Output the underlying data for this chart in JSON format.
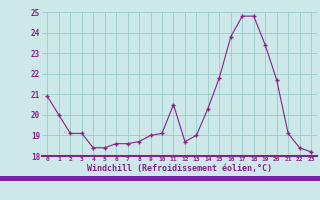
{
  "x": [
    0,
    1,
    2,
    3,
    4,
    5,
    6,
    7,
    8,
    9,
    10,
    11,
    12,
    13,
    14,
    15,
    16,
    17,
    18,
    19,
    20,
    21,
    22,
    23
  ],
  "y": [
    20.9,
    20.0,
    19.1,
    19.1,
    18.4,
    18.4,
    18.6,
    18.6,
    18.7,
    19.0,
    19.1,
    20.5,
    18.7,
    19.0,
    20.3,
    21.8,
    23.8,
    24.8,
    24.8,
    23.4,
    21.7,
    19.1,
    18.4,
    18.2
  ],
  "line_color": "#882288",
  "marker": "+",
  "bg_color": "#CCE8E8",
  "plot_bg_color": "#CCE8E8",
  "grid_color": "#99CCCC",
  "xlabel": "Windchill (Refroidissement éolien,°C)",
  "xlabel_color": "#882288",
  "tick_color": "#882288",
  "axis_line_color": "#882288",
  "ylim": [
    18,
    25
  ],
  "yticks": [
    18,
    19,
    20,
    21,
    22,
    23,
    24,
    25
  ],
  "xticks": [
    0,
    1,
    2,
    3,
    4,
    5,
    6,
    7,
    8,
    9,
    10,
    11,
    12,
    13,
    14,
    15,
    16,
    17,
    18,
    19,
    20,
    21,
    22,
    23
  ],
  "bottom_bar_color": "#7722AA"
}
